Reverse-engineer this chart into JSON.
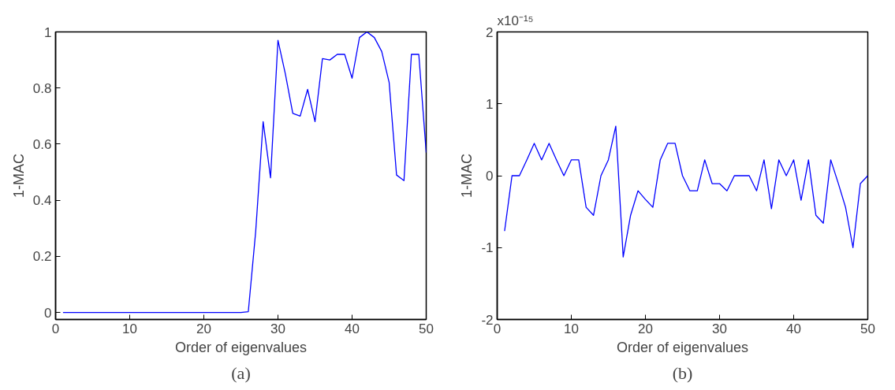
{
  "chart_data": [
    {
      "type": "line",
      "xlabel": "Order of eigenvalues",
      "ylabel": "1-MAC",
      "annotations": [
        "(a)"
      ],
      "grid": false,
      "line_style": "solid",
      "color": "#0000ff",
      "x": [
        1,
        2,
        3,
        4,
        5,
        6,
        7,
        8,
        9,
        10,
        11,
        12,
        13,
        14,
        15,
        16,
        17,
        18,
        19,
        20,
        21,
        22,
        23,
        24,
        25,
        26,
        27,
        28,
        29,
        30,
        31,
        32,
        33,
        34,
        35,
        36,
        37,
        38,
        39,
        40,
        41,
        42,
        43,
        44,
        45,
        46,
        47,
        48,
        49,
        50
      ],
      "values": [
        0,
        0,
        0,
        0,
        0,
        0,
        0,
        0,
        0,
        0,
        0,
        0,
        0,
        0,
        0,
        0,
        0,
        0,
        0,
        0,
        0,
        0,
        0,
        0,
        0,
        0.003,
        0.29,
        0.68,
        0.48,
        0.97,
        0.85,
        0.71,
        0.7,
        0.795,
        0.68,
        0.905,
        0.9,
        0.92,
        0.92,
        0.835,
        0.98,
        1.0,
        0.98,
        0.93,
        0.82,
        0.49,
        0.47,
        0.92,
        0.92,
        0.57
      ],
      "xlim": [
        0,
        50
      ],
      "ylim": [
        -0.025,
        1
      ],
      "xticks": [
        0,
        10,
        20,
        30,
        40,
        50
      ],
      "yticks": [
        0,
        0.2,
        0.4,
        0.6,
        0.8,
        1
      ]
    },
    {
      "type": "line",
      "xlabel": "Order of eigenvalues",
      "ylabel": "1-MAC",
      "annotations": [
        "x10⁻¹⁵",
        "(b)"
      ],
      "grid": false,
      "line_style": "solid",
      "color": "#0000ff",
      "x": [
        1,
        2,
        3,
        4,
        5,
        6,
        7,
        8,
        9,
        10,
        11,
        12,
        13,
        14,
        15,
        16,
        17,
        18,
        19,
        20,
        21,
        22,
        23,
        24,
        25,
        26,
        27,
        28,
        29,
        30,
        31,
        32,
        33,
        34,
        35,
        36,
        37,
        38,
        39,
        40,
        41,
        42,
        43,
        44,
        45,
        46,
        47,
        48,
        49,
        50
      ],
      "values": [
        -0.77,
        0,
        0,
        0.22,
        0.45,
        0.22,
        0.45,
        0.22,
        0,
        0.22,
        0.22,
        -0.44,
        -0.55,
        0,
        0.22,
        0.69,
        -1.13,
        -0.55,
        -0.21,
        -0.33,
        -0.44,
        0.22,
        0.45,
        0.45,
        0,
        -0.21,
        -0.21,
        0.22,
        -0.11,
        -0.11,
        -0.21,
        0,
        0,
        0,
        -0.21,
        0.22,
        -0.46,
        0.22,
        0,
        0.22,
        -0.34,
        0.22,
        -0.55,
        -0.66,
        0.22,
        -0.1,
        -0.44,
        -1.0,
        -0.11,
        0
      ],
      "xlim": [
        0,
        50
      ],
      "ylim": [
        -2,
        2
      ],
      "xticks": [
        0,
        10,
        20,
        30,
        40,
        50
      ],
      "yticks": [
        -2,
        -1,
        0,
        1,
        2
      ]
    }
  ]
}
